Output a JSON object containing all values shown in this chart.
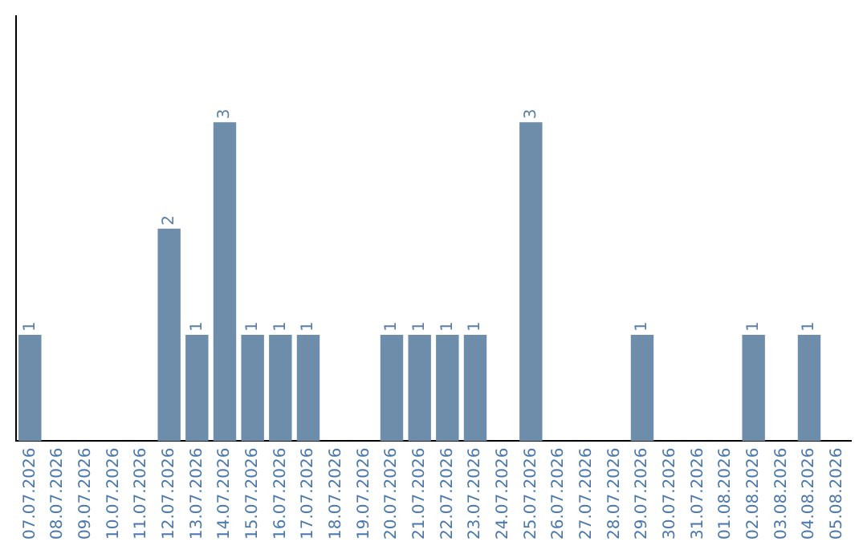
{
  "chart_data": {
    "type": "bar",
    "categories": [
      "07.07.2026",
      "08.07.2026",
      "09.07.2026",
      "10.07.2026",
      "11.07.2026",
      "12.07.2026",
      "13.07.2026",
      "14.07.2026",
      "15.07.2026",
      "16.07.2026",
      "17.07.2026",
      "18.07.2026",
      "19.07.2026",
      "20.07.2026",
      "21.07.2026",
      "22.07.2026",
      "23.07.2026",
      "24.07.2026",
      "25.07.2026",
      "26.07.2026",
      "27.07.2026",
      "28.07.2026",
      "29.07.2026",
      "30.07.2026",
      "31.07.2026",
      "01.08.2026",
      "02.08.2026",
      "03.08.2026",
      "04.08.2026",
      "05.08.2026"
    ],
    "values": [
      1,
      0,
      0,
      0,
      0,
      2,
      1,
      3,
      1,
      1,
      1,
      0,
      0,
      1,
      1,
      1,
      1,
      0,
      3,
      0,
      0,
      0,
      1,
      0,
      0,
      0,
      1,
      0,
      1,
      0
    ],
    "value_labels": [
      "1",
      null,
      null,
      null,
      null,
      "2",
      "1",
      "3",
      "1",
      "1",
      "1",
      null,
      null,
      "1",
      "1",
      "1",
      "1",
      null,
      "3",
      null,
      null,
      null,
      "1",
      null,
      null,
      null,
      "1",
      null,
      "1",
      null
    ],
    "color": "#6e8dab",
    "tick_labels": "x",
    "grid": false,
    "legend": false
  }
}
